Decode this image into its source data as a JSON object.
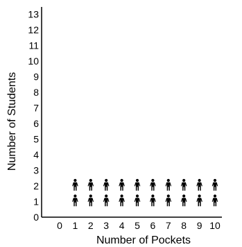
{
  "chart_data": {
    "type": "pictograph",
    "xlabel": "Number of Pockets",
    "ylabel": "Number of Students",
    "x_ticks": [
      "0",
      "1",
      "2",
      "3",
      "4",
      "5",
      "6",
      "7",
      "8",
      "9",
      "10"
    ],
    "y_ticks": [
      "0",
      "1",
      "2",
      "3",
      "4",
      "5",
      "6",
      "7",
      "8",
      "9",
      "10",
      "11",
      "12",
      "13"
    ],
    "xlim": [
      0,
      10
    ],
    "ylim": [
      0,
      13
    ],
    "categories": [
      0,
      1,
      2,
      3,
      4,
      5,
      6,
      7,
      8,
      9,
      10
    ],
    "values": [
      0,
      2,
      2,
      2,
      2,
      2,
      2,
      2,
      2,
      2,
      2
    ],
    "symbol": "person-icon",
    "symbol_value": 1,
    "grid": false,
    "colors": {
      "ink": "#000000",
      "background": "#ffffff"
    }
  }
}
